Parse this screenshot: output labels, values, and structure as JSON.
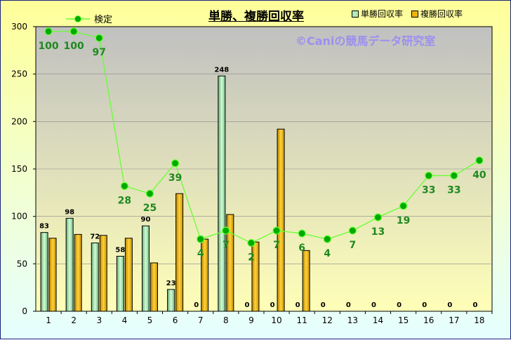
{
  "chart_data": {
    "type": "bar",
    "title": "単勝、複勝回収率",
    "watermark": "©Caniの競馬データ研究室",
    "categories": [
      "1",
      "2",
      "3",
      "4",
      "5",
      "6",
      "7",
      "8",
      "9",
      "10",
      "11",
      "12",
      "13",
      "14",
      "15",
      "16",
      "17",
      "18"
    ],
    "ylim": [
      0,
      300
    ],
    "yticks": [
      0,
      50,
      100,
      150,
      200,
      250,
      300
    ],
    "series": [
      {
        "name": "単勝回収率",
        "color": "#b2eab9",
        "values": [
          83,
          98,
          72,
          58,
          90,
          23,
          0,
          248,
          0,
          0,
          0,
          0,
          0,
          0,
          0,
          0,
          0,
          0
        ]
      },
      {
        "name": "複勝回収率",
        "color": "#f0b400",
        "values": [
          77,
          81,
          80,
          77,
          51,
          124,
          76,
          102,
          73,
          192,
          64,
          0,
          0,
          0,
          0,
          0,
          0,
          0
        ]
      }
    ],
    "line": {
      "name": "検定",
      "color": "#66ff33",
      "y": [
        295,
        295,
        288,
        132,
        124,
        156,
        76,
        85,
        72,
        85,
        82,
        76,
        85,
        99,
        111,
        143,
        143,
        159
      ],
      "labels": [
        "100",
        "100",
        "97",
        "28",
        "25",
        "39",
        "4",
        "7",
        "2",
        "7",
        "6",
        "4",
        "7",
        "13",
        "19",
        "33",
        "33",
        "40"
      ]
    }
  }
}
